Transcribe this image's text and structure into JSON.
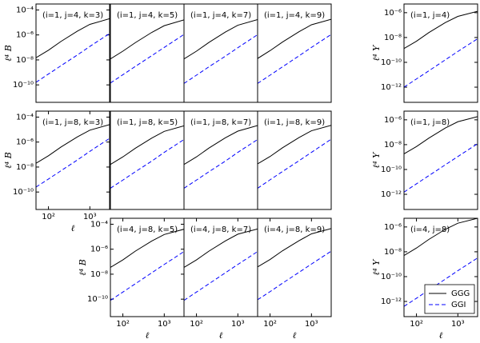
{
  "chart_data": [
    {
      "type": "line",
      "annotation": "(i=1, j=4, k=3)",
      "ylabel": "ℓ⁴ B",
      "xscale": "log",
      "yscale": "log",
      "xlim": [
        50,
        3000
      ],
      "ylim": [
        4e-12,
        0.0003
      ],
      "yticks": [
        {
          "value": 0.0001,
          "label": "10⁻⁴"
        },
        {
          "value": 1e-06,
          "label": "10⁻⁶"
        },
        {
          "value": 1e-08,
          "label": "10⁻⁸"
        },
        {
          "value": 1e-10,
          "label": "10⁻¹⁰"
        }
      ],
      "x": [
        50,
        100,
        200,
        500,
        1000,
        3000
      ],
      "series": [
        {
          "color": "#000000",
          "linestyle": "solid",
          "values": [
            1.5e-08,
            6e-08,
            3e-07,
            2e-06,
            7e-06,
            2e-05
          ]
        },
        {
          "color": "#0000ff",
          "linestyle": "dashed",
          "values": [
            1.6e-10,
            7.4e-10,
            3.4e-09,
            2.5e-08,
            1.2e-07,
            1.3e-06
          ]
        }
      ]
    },
    {
      "type": "line",
      "annotation": "(i=1, j=4, k=5)",
      "xscale": "log",
      "yscale": "log",
      "xlim": [
        50,
        3000
      ],
      "ylim": [
        4e-12,
        0.0003
      ],
      "x": [
        50,
        100,
        200,
        500,
        1000,
        3000
      ],
      "series": [
        {
          "color": "#000000",
          "linestyle": "solid",
          "values": [
            1.2e-08,
            5e-08,
            2.4e-07,
            1.6e-06,
            5.5e-06,
            1.6e-05
          ]
        },
        {
          "color": "#0000ff",
          "linestyle": "dashed",
          "values": [
            1.4e-10,
            6.5e-10,
            3e-09,
            2.2e-08,
            1e-07,
            1.1e-06
          ]
        }
      ]
    },
    {
      "type": "line",
      "annotation": "(i=1, j=4, k=7)",
      "xscale": "log",
      "yscale": "log",
      "xlim": [
        50,
        3000
      ],
      "ylim": [
        4e-12,
        0.0003
      ],
      "x": [
        50,
        100,
        200,
        500,
        1000,
        3000
      ],
      "series": [
        {
          "color": "#000000",
          "linestyle": "solid",
          "values": [
            1.2e-08,
            5e-08,
            2.5e-07,
            1.7e-06,
            6e-06,
            1.7e-05
          ]
        },
        {
          "color": "#0000ff",
          "linestyle": "dashed",
          "values": [
            1.3e-10,
            6e-10,
            2.8e-09,
            2e-08,
            9.5e-08,
            1.05e-06
          ]
        }
      ]
    },
    {
      "type": "line",
      "annotation": "(i=1, j=4, k=9)",
      "xscale": "log",
      "yscale": "log",
      "xlim": [
        50,
        3000
      ],
      "ylim": [
        4e-12,
        0.0003
      ],
      "x": [
        50,
        100,
        200,
        500,
        1000,
        3000
      ],
      "series": [
        {
          "color": "#000000",
          "linestyle": "solid",
          "values": [
            1.3e-08,
            5.5e-08,
            2.7e-07,
            1.8e-06,
            6.5e-06,
            1.8e-05
          ]
        },
        {
          "color": "#0000ff",
          "linestyle": "dashed",
          "values": [
            1.3e-10,
            6e-10,
            2.8e-09,
            2.1e-08,
            1e-07,
            1.1e-06
          ]
        }
      ]
    },
    {
      "type": "line",
      "annotation": "(i=1, j=4)",
      "ylabel": "ℓ⁴ Y",
      "xscale": "log",
      "yscale": "log",
      "xlim": [
        50,
        3000
      ],
      "ylim": [
        6e-14,
        5e-06
      ],
      "yticks": [
        {
          "value": 1e-06,
          "label": "10⁻⁶"
        },
        {
          "value": 1e-08,
          "label": "10⁻⁸"
        },
        {
          "value": 1e-10,
          "label": "10⁻¹⁰"
        },
        {
          "value": 1e-12,
          "label": "10⁻¹²"
        }
      ],
      "x": [
        50,
        100,
        200,
        500,
        1000,
        3000
      ],
      "series": [
        {
          "color": "#000000",
          "linestyle": "solid",
          "values": [
            1.3e-09,
            5e-09,
            2.5e-08,
            1.6e-07,
            5e-07,
            1.3e-06
          ]
        },
        {
          "color": "#0000ff",
          "linestyle": "dashed",
          "values": [
            1e-12,
            4.6e-12,
            2.1e-11,
            1.6e-10,
            7.5e-10,
            8e-09
          ]
        }
      ]
    },
    {
      "type": "line",
      "annotation": "(i=1, j=8, k=3)",
      "ylabel": "ℓ⁴ B",
      "xlabel": "ℓ",
      "xscale": "log",
      "yscale": "log",
      "xlim": [
        50,
        3000
      ],
      "ylim": [
        4e-12,
        0.0003
      ],
      "xticks": [
        {
          "value": 100,
          "label": "10²"
        },
        {
          "value": 1000,
          "label": "10³"
        }
      ],
      "yticks": [
        {
          "value": 0.0001,
          "label": "10⁻⁴"
        },
        {
          "value": 1e-06,
          "label": "10⁻⁶"
        },
        {
          "value": 1e-08,
          "label": "10⁻⁸"
        },
        {
          "value": 1e-10,
          "label": "10⁻¹⁰"
        }
      ],
      "x": [
        50,
        100,
        200,
        500,
        1000,
        3000
      ],
      "series": [
        {
          "color": "#000000",
          "linestyle": "solid",
          "values": [
            2e-08,
            8e-08,
            4e-07,
            2.6e-06,
            9e-06,
            2.5e-05
          ]
        },
        {
          "color": "#0000ff",
          "linestyle": "dashed",
          "values": [
            2.5e-10,
            1.1e-09,
            5e-09,
            3.7e-08,
            1.8e-07,
            2e-06
          ]
        }
      ]
    },
    {
      "type": "line",
      "annotation": "(i=1, j=8, k=5)",
      "xscale": "log",
      "yscale": "log",
      "xlim": [
        50,
        3000
      ],
      "ylim": [
        4e-12,
        0.0003
      ],
      "x": [
        50,
        100,
        200,
        500,
        1000,
        3000
      ],
      "series": [
        {
          "color": "#000000",
          "linestyle": "solid",
          "values": [
            1.6e-08,
            6.5e-08,
            3.2e-07,
            2.1e-06,
            7.2e-06,
            2e-05
          ]
        },
        {
          "color": "#0000ff",
          "linestyle": "dashed",
          "values": [
            2e-10,
            9e-10,
            4.2e-09,
            3e-08,
            1.5e-07,
            1.6e-06
          ]
        }
      ]
    },
    {
      "type": "line",
      "annotation": "(i=1, j=8, k=7)",
      "xscale": "log",
      "yscale": "log",
      "xlim": [
        50,
        3000
      ],
      "ylim": [
        4e-12,
        0.0003
      ],
      "x": [
        50,
        100,
        200,
        500,
        1000,
        3000
      ],
      "series": [
        {
          "color": "#000000",
          "linestyle": "solid",
          "values": [
            1.6e-08,
            6.5e-08,
            3.3e-07,
            2.2e-06,
            7.5e-06,
            2.1e-05
          ]
        },
        {
          "color": "#0000ff",
          "linestyle": "dashed",
          "values": [
            2e-10,
            9e-10,
            4.2e-09,
            3e-08,
            1.5e-07,
            1.6e-06
          ]
        }
      ]
    },
    {
      "type": "line",
      "annotation": "(i=1, j=8, k=9)",
      "xscale": "log",
      "yscale": "log",
      "xlim": [
        50,
        3000
      ],
      "ylim": [
        4e-12,
        0.0003
      ],
      "x": [
        50,
        100,
        200,
        500,
        1000,
        3000
      ],
      "series": [
        {
          "color": "#000000",
          "linestyle": "solid",
          "values": [
            1.8e-08,
            7e-08,
            3.5e-07,
            2.3e-06,
            8e-06,
            2.2e-05
          ]
        },
        {
          "color": "#0000ff",
          "linestyle": "dashed",
          "values": [
            2e-10,
            9.5e-10,
            4.4e-09,
            3.2e-08,
            1.5e-07,
            1.7e-06
          ]
        }
      ]
    },
    {
      "type": "line",
      "annotation": "(i=1, j=8)",
      "ylabel": "ℓ⁴ Y",
      "xscale": "log",
      "yscale": "log",
      "xlim": [
        50,
        3000
      ],
      "ylim": [
        6e-14,
        5e-06
      ],
      "yticks": [
        {
          "value": 1e-06,
          "label": "10⁻⁶"
        },
        {
          "value": 1e-08,
          "label": "10⁻⁸"
        },
        {
          "value": 1e-10,
          "label": "10⁻¹⁰"
        },
        {
          "value": 1e-12,
          "label": "10⁻¹²"
        }
      ],
      "x": [
        50,
        100,
        200,
        500,
        1000,
        3000
      ],
      "series": [
        {
          "color": "#000000",
          "linestyle": "solid",
          "values": [
            1.8e-09,
            7e-09,
            3.4e-08,
            2.2e-07,
            7e-07,
            1.8e-06
          ]
        },
        {
          "color": "#0000ff",
          "linestyle": "dashed",
          "values": [
            1.5e-12,
            7e-12,
            3.2e-11,
            2.4e-10,
            1.1e-09,
            1.2e-08
          ]
        }
      ]
    },
    {
      "type": "line",
      "annotation": "(i=4, j=8, k=5)",
      "ylabel": "ℓ⁴ B",
      "xlabel": "ℓ",
      "xscale": "log",
      "yscale": "log",
      "xlim": [
        50,
        3000
      ],
      "ylim": [
        4e-12,
        0.0003
      ],
      "xticks": [
        {
          "value": 100,
          "label": "10²"
        },
        {
          "value": 1000,
          "label": "10³"
        }
      ],
      "yticks": [
        {
          "value": 0.0001,
          "label": "10⁻⁴"
        },
        {
          "value": 1e-06,
          "label": "10⁻⁶"
        },
        {
          "value": 1e-08,
          "label": "10⁻⁸"
        },
        {
          "value": 1e-10,
          "label": "10⁻¹⁰"
        }
      ],
      "x": [
        50,
        100,
        200,
        500,
        1000,
        3000
      ],
      "series": [
        {
          "color": "#000000",
          "linestyle": "solid",
          "values": [
            3.5e-08,
            1.4e-07,
            7e-07,
            4.5e-06,
            1.5e-05,
            4e-05
          ]
        },
        {
          "color": "#0000ff",
          "linestyle": "dashed",
          "values": [
            8e-11,
            3.7e-10,
            1.7e-09,
            1.3e-08,
            6e-08,
            6.5e-07
          ]
        }
      ]
    },
    {
      "type": "line",
      "annotation": "(i=4, j=8, k=7)",
      "xlabel": "ℓ",
      "xscale": "log",
      "yscale": "log",
      "xlim": [
        50,
        3000
      ],
      "ylim": [
        4e-12,
        0.0003
      ],
      "xticks": [
        {
          "value": 100,
          "label": "10²"
        },
        {
          "value": 1000,
          "label": "10³"
        }
      ],
      "x": [
        50,
        100,
        200,
        500,
        1000,
        3000
      ],
      "series": [
        {
          "color": "#000000",
          "linestyle": "solid",
          "values": [
            3.5e-08,
            1.4e-07,
            7e-07,
            4.6e-06,
            1.6e-05,
            4.2e-05
          ]
        },
        {
          "color": "#0000ff",
          "linestyle": "dashed",
          "values": [
            8e-11,
            3.7e-10,
            1.7e-09,
            1.3e-08,
            6e-08,
            6.5e-07
          ]
        }
      ]
    },
    {
      "type": "line",
      "annotation": "(i=4, j=8, k=9)",
      "xlabel": "ℓ",
      "xscale": "log",
      "yscale": "log",
      "xlim": [
        50,
        3000
      ],
      "ylim": [
        4e-12,
        0.0003
      ],
      "xticks": [
        {
          "value": 100,
          "label": "10²"
        },
        {
          "value": 1000,
          "label": "10³"
        }
      ],
      "x": [
        50,
        100,
        200,
        500,
        1000,
        3000
      ],
      "series": [
        {
          "color": "#000000",
          "linestyle": "solid",
          "values": [
            3.8e-08,
            1.5e-07,
            7.5e-07,
            4.8e-06,
            1.7e-05,
            4.5e-05
          ]
        },
        {
          "color": "#0000ff",
          "linestyle": "dashed",
          "values": [
            9e-11,
            4e-10,
            1.9e-09,
            1.4e-08,
            6.5e-08,
            7e-07
          ]
        }
      ]
    },
    {
      "type": "line",
      "annotation": "(i=4, j=8)",
      "ylabel": "ℓ⁴ Y",
      "xlabel": "ℓ",
      "xscale": "log",
      "yscale": "log",
      "xlim": [
        50,
        3000
      ],
      "ylim": [
        6e-14,
        5e-06
      ],
      "legend": "lower right",
      "xticks": [
        {
          "value": 100,
          "label": "10²"
        },
        {
          "value": 1000,
          "label": "10³"
        }
      ],
      "yticks": [
        {
          "value": 1e-06,
          "label": "10⁻⁶"
        },
        {
          "value": 1e-08,
          "label": "10⁻⁸"
        },
        {
          "value": 1e-10,
          "label": "10⁻¹⁰"
        },
        {
          "value": 1e-12,
          "label": "10⁻¹²"
        }
      ],
      "x": [
        50,
        100,
        200,
        500,
        1000,
        3000
      ],
      "series": [
        {
          "name": "GGG",
          "color": "#000000",
          "linestyle": "solid",
          "values": [
            5e-09,
            2e-08,
            1e-07,
            6.5e-07,
            2e-06,
            5e-06
          ]
        },
        {
          "name": "GGI",
          "color": "#0000ff",
          "linestyle": "dashed",
          "values": [
            4e-13,
            1.8e-12,
            8.5e-12,
            6.3e-11,
            3e-10,
            3.2e-09
          ]
        }
      ]
    }
  ]
}
